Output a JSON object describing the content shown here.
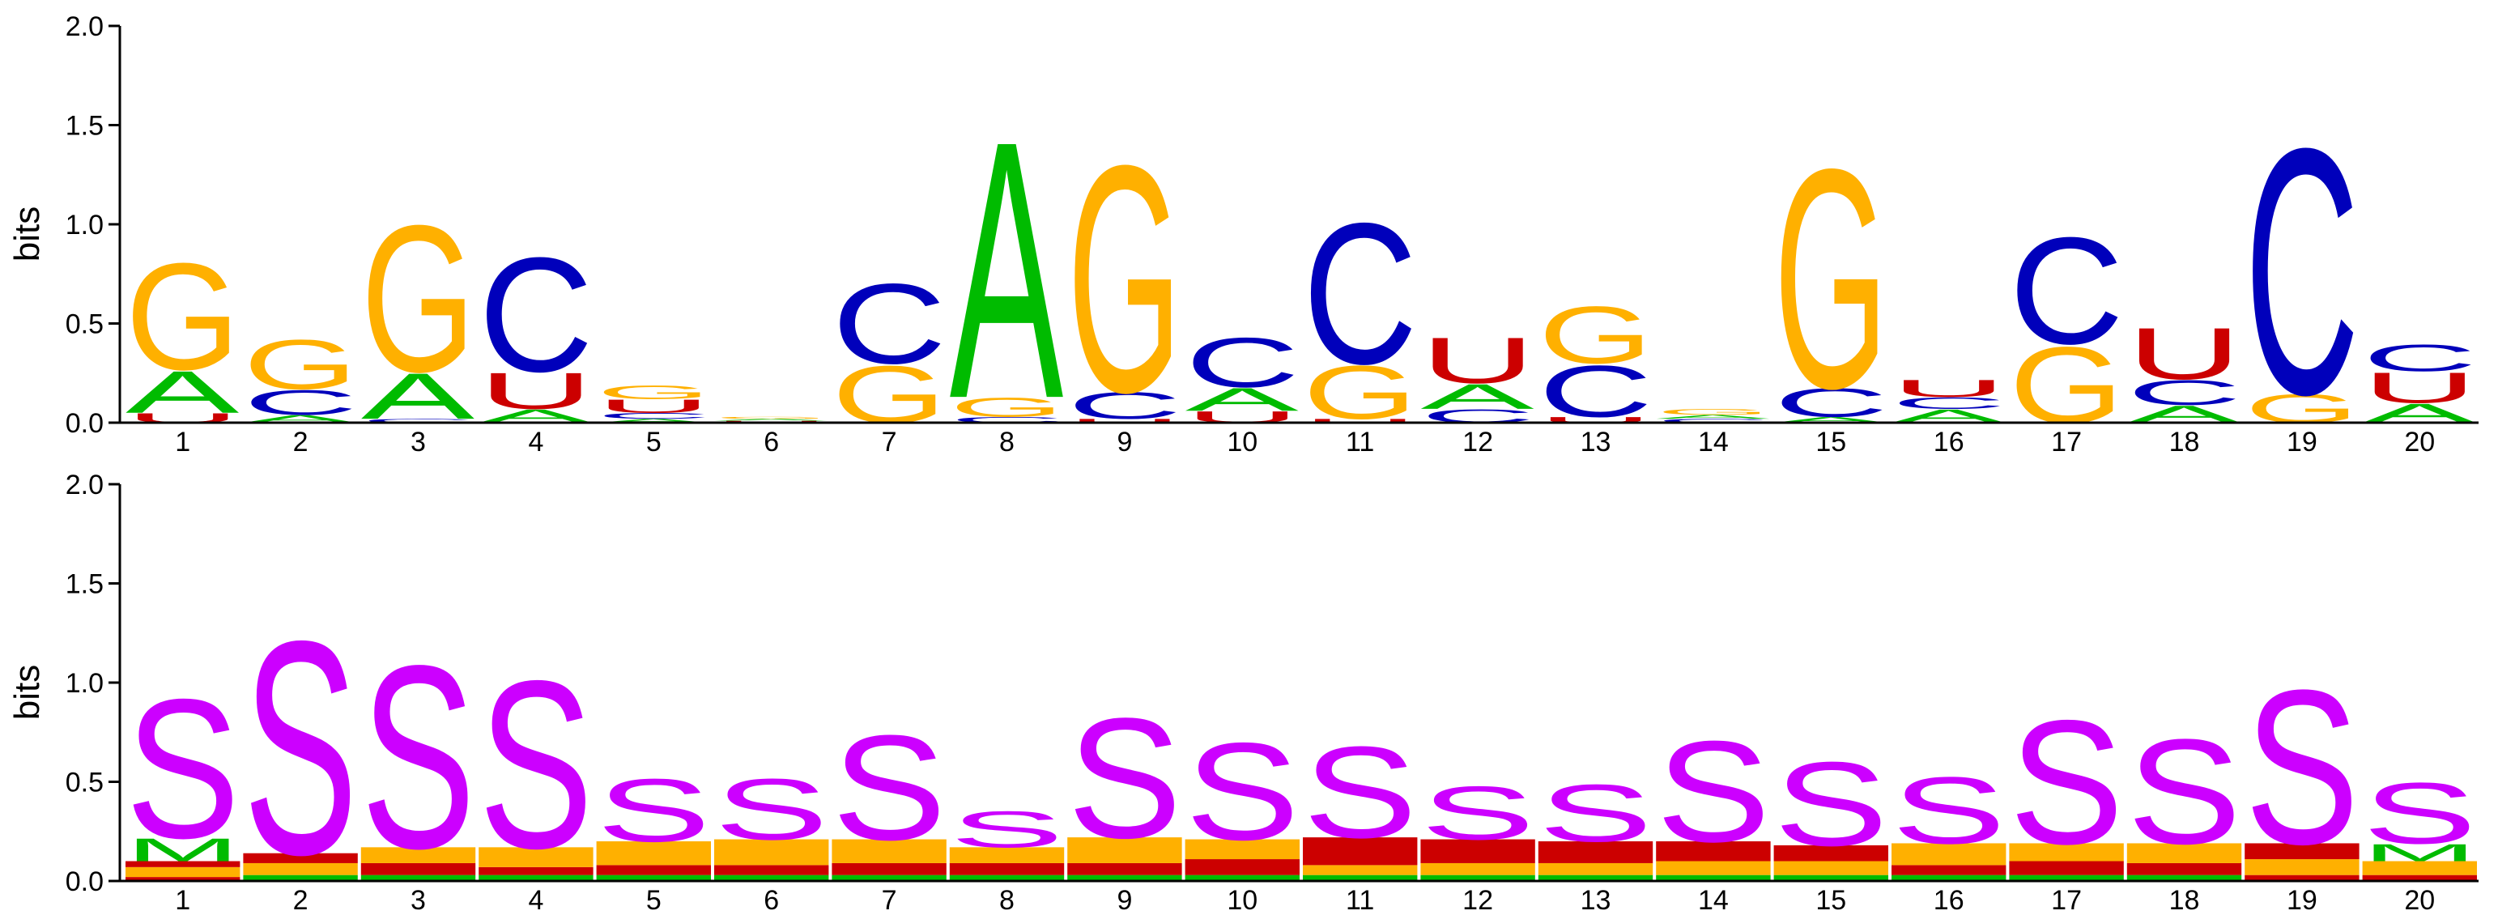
{
  "colors": {
    "A": "#00bb00",
    "C": "#0000bb",
    "G": "#ffb000",
    "U": "#cc0000",
    "S": "#cc00ff",
    "M": "#00bb00",
    "other_orange": "#ffb000",
    "other_red": "#cc0000"
  },
  "chart_data": [
    {
      "type": "sequence-logo",
      "ylabel": "bits",
      "ylim": [
        0,
        2
      ],
      "yticks": [
        "0.0",
        "0.5",
        "1.0",
        "1.5",
        "2.0"
      ],
      "positions": [
        "1",
        "2",
        "3",
        "4",
        "5",
        "6",
        "7",
        "8",
        "9",
        "10",
        "11",
        "12",
        "13",
        "14",
        "15",
        "16",
        "17",
        "18",
        "19",
        "20"
      ],
      "columns": [
        [
          {
            "l": "U",
            "h": 0.05
          },
          {
            "l": "A",
            "h": 0.22
          },
          {
            "l": "G",
            "h": 0.56
          }
        ],
        [
          {
            "l": "A",
            "h": 0.04
          },
          {
            "l": "C",
            "h": 0.13
          },
          {
            "l": "G",
            "h": 0.26
          }
        ],
        [
          {
            "l": "C",
            "h": 0.02
          },
          {
            "l": "A",
            "h": 0.24
          },
          {
            "l": "G",
            "h": 0.77
          }
        ],
        [
          {
            "l": "A",
            "h": 0.07
          },
          {
            "l": "U",
            "h": 0.19
          },
          {
            "l": "C",
            "h": 0.6
          }
        ],
        [
          {
            "l": "A",
            "h": 0.02
          },
          {
            "l": "C",
            "h": 0.03
          },
          {
            "l": "U",
            "h": 0.07
          },
          {
            "l": "G",
            "h": 0.07
          }
        ],
        [
          {
            "l": "U",
            "h": 0.01
          },
          {
            "l": "A",
            "h": 0.01
          },
          {
            "l": "G",
            "h": 0.01
          }
        ],
        [
          {
            "l": "G",
            "h": 0.3
          },
          {
            "l": "C",
            "h": 0.42
          }
        ],
        [
          {
            "l": "C",
            "h": 0.03
          },
          {
            "l": "G",
            "h": 0.1
          },
          {
            "l": "A",
            "h": 1.35
          }
        ],
        [
          {
            "l": "U",
            "h": 0.02
          },
          {
            "l": "C",
            "h": 0.14
          },
          {
            "l": "G",
            "h": 1.19
          }
        ],
        [
          {
            "l": "U",
            "h": 0.06
          },
          {
            "l": "A",
            "h": 0.12
          },
          {
            "l": "C",
            "h": 0.26
          }
        ],
        [
          {
            "l": "U",
            "h": 0.02
          },
          {
            "l": "G",
            "h": 0.28
          },
          {
            "l": "C",
            "h": 0.74
          }
        ],
        [
          {
            "l": "C",
            "h": 0.07
          },
          {
            "l": "A",
            "h": 0.13
          },
          {
            "l": "U",
            "h": 0.24
          }
        ],
        [
          {
            "l": "U",
            "h": 0.03
          },
          {
            "l": "C",
            "h": 0.27
          },
          {
            "l": "G",
            "h": 0.3
          }
        ],
        [
          {
            "l": "C",
            "h": 0.02
          },
          {
            "l": "A",
            "h": 0.02
          },
          {
            "l": "G",
            "h": 0.03
          }
        ],
        [
          {
            "l": "A",
            "h": 0.03
          },
          {
            "l": "C",
            "h": 0.15
          },
          {
            "l": "G",
            "h": 1.15
          }
        ],
        [
          {
            "l": "A",
            "h": 0.07
          },
          {
            "l": "C",
            "h": 0.06
          },
          {
            "l": "U",
            "h": 0.09
          }
        ],
        [
          {
            "l": "G",
            "h": 0.4
          },
          {
            "l": "C",
            "h": 0.56
          }
        ],
        [
          {
            "l": "A",
            "h": 0.09
          },
          {
            "l": "C",
            "h": 0.13
          },
          {
            "l": "U",
            "h": 0.27
          }
        ],
        [
          {
            "l": "G",
            "h": 0.15
          },
          {
            "l": "C",
            "h": 1.29
          }
        ],
        [
          {
            "l": "A",
            "h": 0.1
          },
          {
            "l": "U",
            "h": 0.16
          },
          {
            "l": "C",
            "h": 0.14
          }
        ]
      ]
    },
    {
      "type": "sequence-logo",
      "ylabel": "bits",
      "ylim": [
        0,
        2
      ],
      "yticks": [
        "0.0",
        "0.5",
        "1.0",
        "1.5",
        "2.0"
      ],
      "positions": [
        "1",
        "2",
        "3",
        "4",
        "5",
        "6",
        "7",
        "8",
        "9",
        "10",
        "11",
        "12",
        "13",
        "14",
        "15",
        "16",
        "17",
        "18",
        "19",
        "20"
      ],
      "columns": [
        [
          {
            "l": "x",
            "h": 0.02,
            "c": "#cc0000"
          },
          {
            "l": "x",
            "h": 0.05,
            "c": "#ffb000"
          },
          {
            "l": "x",
            "h": 0.03,
            "c": "#cc0000"
          },
          {
            "l": "M",
            "h": 0.12
          },
          {
            "l": "S",
            "h": 0.73
          }
        ],
        [
          {
            "l": "x",
            "h": 0.03,
            "c": "#00bb00"
          },
          {
            "l": "x",
            "h": 0.06,
            "c": "#ffb000"
          },
          {
            "l": "x",
            "h": 0.05,
            "c": "#cc0000"
          },
          {
            "l": "S",
            "h": 1.12
          }
        ],
        [
          {
            "l": "x",
            "h": 0.03,
            "c": "#00bb00"
          },
          {
            "l": "x",
            "h": 0.06,
            "c": "#cc0000"
          },
          {
            "l": "x",
            "h": 0.08,
            "c": "#ffb000"
          },
          {
            "l": "S",
            "h": 0.96
          }
        ],
        [
          {
            "l": "x",
            "h": 0.03,
            "c": "#00bb00"
          },
          {
            "l": "x",
            "h": 0.04,
            "c": "#cc0000"
          },
          {
            "l": "x",
            "h": 0.1,
            "c": "#ffb000"
          },
          {
            "l": "S",
            "h": 0.88
          }
        ],
        [
          {
            "l": "x",
            "h": 0.03,
            "c": "#00bb00"
          },
          {
            "l": "x",
            "h": 0.05,
            "c": "#cc0000"
          },
          {
            "l": "x",
            "h": 0.12,
            "c": "#ffb000"
          },
          {
            "l": "S",
            "h": 0.33
          }
        ],
        [
          {
            "l": "x",
            "h": 0.03,
            "c": "#00bb00"
          },
          {
            "l": "x",
            "h": 0.05,
            "c": "#cc0000"
          },
          {
            "l": "x",
            "h": 0.13,
            "c": "#ffb000"
          },
          {
            "l": "S",
            "h": 0.32
          }
        ],
        [
          {
            "l": "x",
            "h": 0.03,
            "c": "#00bb00"
          },
          {
            "l": "x",
            "h": 0.06,
            "c": "#cc0000"
          },
          {
            "l": "x",
            "h": 0.12,
            "c": "#ffb000"
          },
          {
            "l": "S",
            "h": 0.55
          }
        ],
        [
          {
            "l": "x",
            "h": 0.03,
            "c": "#00bb00"
          },
          {
            "l": "x",
            "h": 0.06,
            "c": "#cc0000"
          },
          {
            "l": "x",
            "h": 0.08,
            "c": "#ffb000"
          },
          {
            "l": "S",
            "h": 0.19
          }
        ],
        [
          {
            "l": "x",
            "h": 0.03,
            "c": "#00bb00"
          },
          {
            "l": "x",
            "h": 0.06,
            "c": "#cc0000"
          },
          {
            "l": "x",
            "h": 0.13,
            "c": "#ffb000"
          },
          {
            "l": "S",
            "h": 0.63
          }
        ],
        [
          {
            "l": "x",
            "h": 0.03,
            "c": "#00bb00"
          },
          {
            "l": "x",
            "h": 0.08,
            "c": "#cc0000"
          },
          {
            "l": "x",
            "h": 0.1,
            "c": "#ffb000"
          },
          {
            "l": "S",
            "h": 0.51
          }
        ],
        [
          {
            "l": "x",
            "h": 0.03,
            "c": "#00bb00"
          },
          {
            "l": "x",
            "h": 0.05,
            "c": "#ffb000"
          },
          {
            "l": "x",
            "h": 0.14,
            "c": "#cc0000"
          },
          {
            "l": "S",
            "h": 0.48
          }
        ],
        [
          {
            "l": "x",
            "h": 0.03,
            "c": "#00bb00"
          },
          {
            "l": "x",
            "h": 0.06,
            "c": "#ffb000"
          },
          {
            "l": "x",
            "h": 0.12,
            "c": "#cc0000"
          },
          {
            "l": "S",
            "h": 0.28
          }
        ],
        [
          {
            "l": "x",
            "h": 0.03,
            "c": "#00bb00"
          },
          {
            "l": "x",
            "h": 0.06,
            "c": "#ffb000"
          },
          {
            "l": "x",
            "h": 0.11,
            "c": "#cc0000"
          },
          {
            "l": "S",
            "h": 0.3
          }
        ],
        [
          {
            "l": "x",
            "h": 0.03,
            "c": "#00bb00"
          },
          {
            "l": "x",
            "h": 0.07,
            "c": "#ffb000"
          },
          {
            "l": "x",
            "h": 0.1,
            "c": "#cc0000"
          },
          {
            "l": "S",
            "h": 0.53
          }
        ],
        [
          {
            "l": "x",
            "h": 0.03,
            "c": "#00bb00"
          },
          {
            "l": "x",
            "h": 0.07,
            "c": "#ffb000"
          },
          {
            "l": "x",
            "h": 0.08,
            "c": "#cc0000"
          },
          {
            "l": "S",
            "h": 0.44
          }
        ],
        [
          {
            "l": "x",
            "h": 0.03,
            "c": "#00bb00"
          },
          {
            "l": "x",
            "h": 0.05,
            "c": "#cc0000"
          },
          {
            "l": "x",
            "h": 0.11,
            "c": "#ffb000"
          },
          {
            "l": "S",
            "h": 0.35
          }
        ],
        [
          {
            "l": "x",
            "h": 0.03,
            "c": "#00bb00"
          },
          {
            "l": "x",
            "h": 0.07,
            "c": "#cc0000"
          },
          {
            "l": "x",
            "h": 0.09,
            "c": "#ffb000"
          },
          {
            "l": "S",
            "h": 0.65
          }
        ],
        [
          {
            "l": "x",
            "h": 0.03,
            "c": "#00bb00"
          },
          {
            "l": "x",
            "h": 0.06,
            "c": "#cc0000"
          },
          {
            "l": "x",
            "h": 0.1,
            "c": "#ffb000"
          },
          {
            "l": "S",
            "h": 0.55
          }
        ],
        [
          {
            "l": "x",
            "h": 0.03,
            "c": "#cc0000"
          },
          {
            "l": "x",
            "h": 0.08,
            "c": "#ffb000"
          },
          {
            "l": "x",
            "h": 0.08,
            "c": "#cc0000"
          },
          {
            "l": "S",
            "h": 0.81
          }
        ],
        [
          {
            "l": "x",
            "h": 0.03,
            "c": "#cc0000"
          },
          {
            "l": "x",
            "h": 0.07,
            "c": "#ffb000"
          },
          {
            "l": "M",
            "h": 0.09
          },
          {
            "l": "S",
            "h": 0.32
          }
        ]
      ]
    }
  ]
}
